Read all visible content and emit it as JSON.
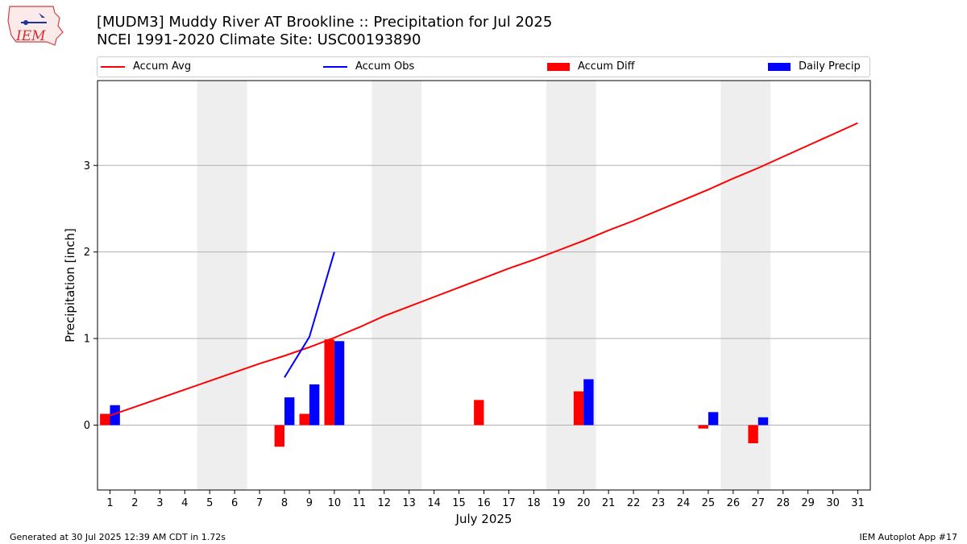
{
  "title": {
    "line1": "[MUDM3] Muddy River  AT Brookline :: Precipitation for Jul 2025",
    "line2": "NCEI 1991-2020 Climate Site: USC00193890"
  },
  "logo": {
    "text": "IEM"
  },
  "legend": {
    "accum_avg": "Accum Avg",
    "accum_obs": "Accum Obs",
    "accum_diff": "Accum Diff",
    "daily_precip": "Daily Precip"
  },
  "colors": {
    "avg": "#ff0000",
    "obs": "#0000ff",
    "diff": "#ff0000",
    "precip": "#0000ff",
    "weekend": "#eeeeee",
    "grid": "#b0b0b0"
  },
  "chart_data": {
    "type": "bar",
    "xlabel": "July 2025",
    "ylabel": "Precipitation [inch]",
    "xlim": [
      0.5,
      31.5
    ],
    "ylim": [
      -0.75,
      3.98
    ],
    "yticks": [
      0,
      1,
      2,
      3
    ],
    "grid": "horizontal",
    "days": [
      1,
      2,
      3,
      4,
      5,
      6,
      7,
      8,
      9,
      10,
      11,
      12,
      13,
      14,
      15,
      16,
      17,
      18,
      19,
      20,
      21,
      22,
      23,
      24,
      25,
      26,
      27,
      28,
      29,
      30,
      31
    ],
    "weekends": [
      [
        5,
        6
      ],
      [
        12,
        13
      ],
      [
        19,
        20
      ],
      [
        26,
        27
      ]
    ],
    "series": [
      {
        "name": "Accum Avg",
        "kind": "line",
        "values": [
          0.11,
          0.21,
          0.31,
          0.41,
          0.51,
          0.61,
          0.71,
          0.8,
          0.9,
          1.01,
          1.13,
          1.26,
          1.37,
          1.48,
          1.59,
          1.7,
          1.81,
          1.91,
          2.02,
          2.13,
          2.25,
          2.36,
          2.48,
          2.6,
          2.72,
          2.85,
          2.97,
          3.1,
          3.23,
          3.36,
          3.49
        ]
      },
      {
        "name": "Accum Obs",
        "kind": "line",
        "values": [
          null,
          null,
          null,
          null,
          null,
          null,
          null,
          0.55,
          1.02,
          2.0,
          null,
          null,
          null,
          null,
          null,
          null,
          null,
          null,
          null,
          null,
          null,
          null,
          null,
          null,
          null,
          null,
          null,
          null,
          null,
          null,
          null
        ]
      },
      {
        "name": "Accum Diff",
        "kind": "bar",
        "values": [
          0.13,
          0,
          0,
          0,
          0,
          0,
          0,
          -0.25,
          0.13,
          0.99,
          0,
          0,
          0,
          0,
          0,
          0.29,
          0,
          0,
          0,
          0.39,
          0,
          0,
          0,
          0,
          -0.04,
          0,
          -0.21,
          0,
          0,
          0,
          0
        ]
      },
      {
        "name": "Daily Precip",
        "kind": "bar",
        "values": [
          0.23,
          0,
          0,
          0,
          0,
          0,
          0,
          0.32,
          0.47,
          0.97,
          0,
          0,
          0,
          0,
          0,
          0,
          0,
          0,
          0,
          0.53,
          0,
          0,
          0,
          0,
          0.15,
          0,
          0.09,
          0,
          0,
          0,
          0
        ]
      }
    ]
  },
  "footer": {
    "left": "Generated at 30 Jul 2025 12:39 AM CDT in 1.72s",
    "right": "IEM Autoplot App #17"
  }
}
